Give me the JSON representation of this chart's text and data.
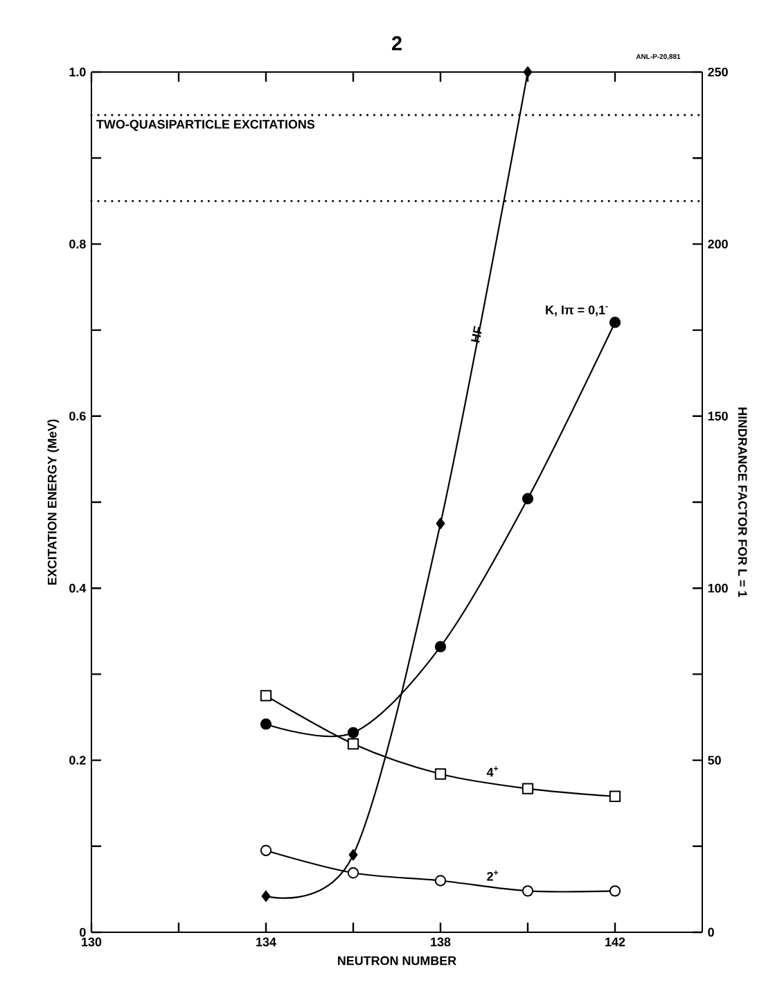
{
  "chart_data": {
    "type": "line",
    "title": "2",
    "xlabel": "NEUTRON NUMBER",
    "ylabel": "EXCITATION ENERGY (MeV)",
    "y2label": "HINDRANCE FACTOR FOR L = 1",
    "x": [
      134,
      136,
      138,
      140,
      142
    ],
    "xlim": [
      130,
      144
    ],
    "xticks": [
      130,
      {
        "value": 132,
        "label": null
      },
      134,
      {
        "value": 136,
        "label": null
      },
      138,
      {
        "value": 140,
        "label": null
      },
      142
    ],
    "ylim": [
      0,
      1
    ],
    "yticks": [
      0,
      {
        "value": 0.1,
        "label": null
      },
      0.2,
      {
        "value": 0.3,
        "label": null
      },
      0.4,
      {
        "value": 0.5,
        "label": null
      },
      0.6,
      {
        "value": 0.7,
        "label": null
      },
      0.8,
      {
        "value": 0.9,
        "label": null
      },
      {
        "value": 1,
        "label": "1.0"
      }
    ],
    "y2lim": [
      0,
      250
    ],
    "y2ticks": [
      0,
      {
        "value": 25,
        "label": null
      },
      50,
      {
        "value": 75,
        "label": null
      },
      100,
      {
        "value": 125,
        "label": null
      },
      150,
      {
        "value": 175,
        "label": null
      },
      200,
      {
        "value": 225,
        "label": null
      },
      250
    ],
    "series": [
      {
        "name": "2$^{+}$",
        "color": "#000000",
        "marker": "circle",
        "values": [
          0.095,
          0.069,
          0.06,
          0.048,
          0.048
        ]
      },
      {
        "name": "4$^{+}$",
        "color": "#000000",
        "marker": "square",
        "values": [
          0.275,
          0.219,
          0.184,
          0.167,
          0.158
        ]
      },
      {
        "name": "K, Iπ = 0,1$^{-}$",
        "color": "#000000",
        "marker": "circle",
        "values": [
          0.242,
          0.232,
          0.332,
          0.504,
          0.709
        ]
      },
      {
        "name": "HF",
        "color": "#000000",
        "marker": "diamond",
        "axis": "y2",
        "x": [
          134,
          136,
          138,
          140
        ],
        "values": [
          10.5,
          22.5,
          118.8,
          250
        ]
      }
    ],
    "ref_lines": [
      {
        "axis": "y",
        "value": 0.95,
        "label": "TWO-QUASIPARTICLE EXCITATIONS",
        "line_style": "dotted"
      },
      {
        "axis": "y",
        "value": 0.85,
        "line_style": "dotted"
      }
    ],
    "annotations": [
      "ANL-P-20,881"
    ],
    "grid": false
  }
}
